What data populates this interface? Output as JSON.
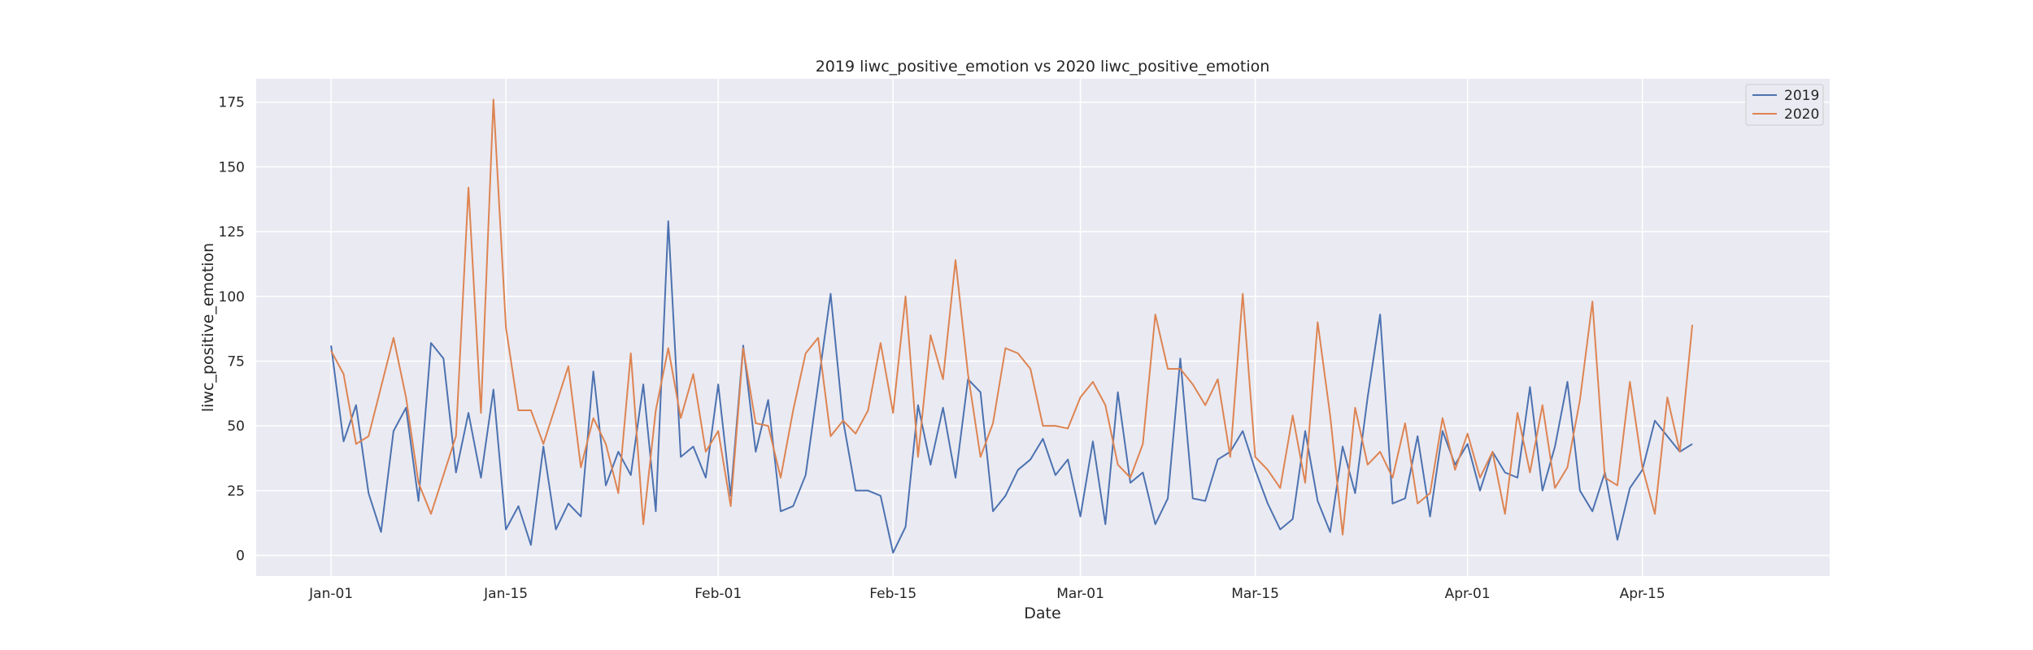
{
  "chart_data": {
    "type": "line",
    "title": "2019 liwc_positive_emotion vs 2020 liwc_positive_emotion",
    "xlabel": "Date",
    "ylabel": "liwc_positive_emotion",
    "x_start": "Jan-01",
    "x_end": "Apr-21",
    "xlim": [
      "Dec-26",
      "Apr-30"
    ],
    "ylim": [
      -8,
      184
    ],
    "x_ticks": [
      "Jan-01",
      "Jan-15",
      "Feb-01",
      "Feb-15",
      "Mar-01",
      "Mar-15",
      "Apr-01",
      "Apr-15"
    ],
    "y_ticks": [
      0,
      25,
      50,
      75,
      100,
      125,
      150,
      175
    ],
    "grid": true,
    "legend_position": "top-right",
    "series": [
      {
        "name": "2019",
        "color": "#4c72b0",
        "values": [
          81,
          44,
          58,
          24,
          9,
          48,
          57,
          21,
          82,
          76,
          32,
          55,
          30,
          64,
          10,
          19,
          4,
          42,
          10,
          20,
          15,
          71,
          27,
          40,
          31,
          66,
          17,
          129,
          38,
          42,
          30,
          66,
          23,
          81,
          40,
          60,
          17,
          19,
          31,
          66,
          101,
          52,
          25,
          25,
          23,
          1,
          11,
          58,
          35,
          57,
          30,
          68,
          63,
          17,
          23,
          33,
          37,
          45,
          31,
          37,
          15,
          44,
          12,
          63,
          28,
          32,
          12,
          22,
          76,
          22,
          21,
          37,
          40,
          48,
          33,
          20,
          10,
          14,
          48,
          21,
          9,
          42,
          24,
          61,
          93,
          20,
          22,
          46,
          15,
          48,
          35,
          43,
          25,
          40,
          32,
          30,
          65,
          25,
          42,
          67,
          25,
          17,
          32,
          6,
          26,
          33,
          52,
          46,
          40,
          43
        ]
      },
      {
        "name": "2020",
        "color": "#dd8452",
        "values": [
          79,
          70,
          43,
          46,
          65,
          84,
          61,
          28,
          16,
          31,
          46,
          142,
          55,
          176,
          88,
          56,
          56,
          43,
          58,
          73,
          34,
          53,
          43,
          24,
          78,
          12,
          56,
          80,
          53,
          70,
          40,
          48,
          19,
          80,
          51,
          50,
          30,
          56,
          78,
          84,
          46,
          52,
          47,
          56,
          82,
          55,
          100,
          38,
          85,
          68,
          114,
          70,
          38,
          51,
          80,
          78,
          72,
          50,
          50,
          49,
          61,
          67,
          58,
          35,
          30,
          43,
          93,
          72,
          72,
          66,
          58,
          68,
          38,
          101,
          38,
          33,
          26,
          54,
          28,
          90,
          54,
          8,
          57,
          35,
          40,
          30,
          51,
          20,
          24,
          53,
          33,
          47,
          30,
          40,
          16,
          55,
          32,
          58,
          26,
          34,
          60,
          98,
          30,
          27,
          67,
          34,
          16,
          61,
          40,
          89
        ]
      }
    ]
  }
}
